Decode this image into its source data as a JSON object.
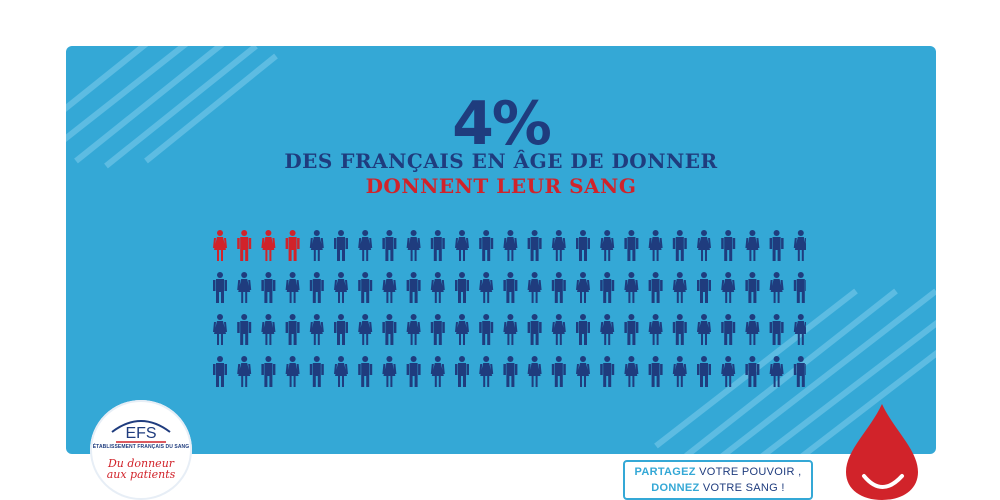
{
  "infographic": {
    "stat": "4%",
    "line1": "DES FRANÇAIS EN ÂGE DE DONNER",
    "line2": "DONNENT LEUR SANG",
    "figures": {
      "total": 100,
      "highlighted": 4,
      "rows": 4,
      "highlight_color": "#d1232a",
      "base_color": "#1f3c7e"
    }
  },
  "logo": {
    "name": "EFS",
    "subtitle": "ÉTABLISSEMENT FRANÇAIS DU SANG",
    "slogan_line1": "Du donneur",
    "slogan_line2": "aux patients"
  },
  "share": {
    "line1_bold": "PARTAGEZ",
    "line1_rest": " VOTRE POUVOIR ,",
    "line2_bold": "DONNEZ",
    "line2_rest": " VOTRE SANG !"
  },
  "colors": {
    "panel": "#34a8d6",
    "navy": "#1f3c7e",
    "red": "#d1232a"
  }
}
